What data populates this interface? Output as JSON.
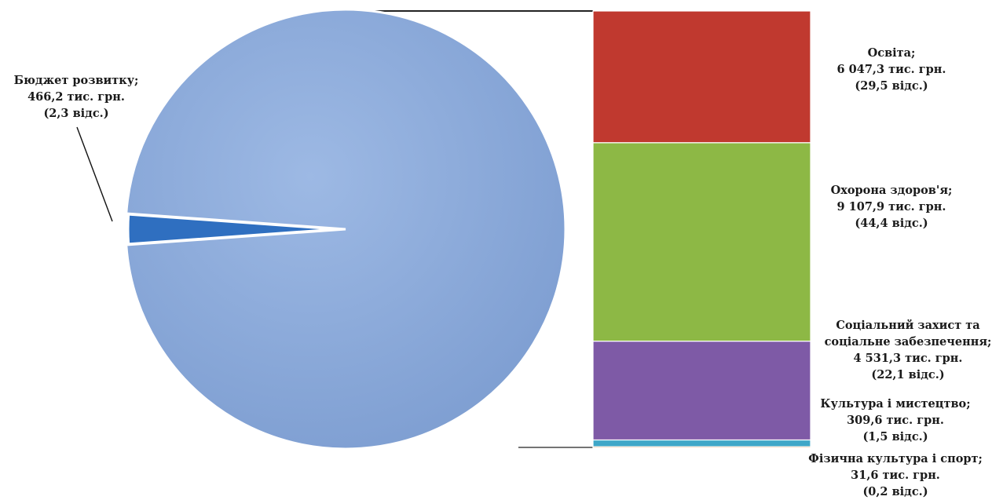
{
  "chart_data": {
    "type": "pie",
    "pie": {
      "slices": [
        {
          "label": "Бюджет розвитку;",
          "value_text": "466,2 тис. грн.",
          "percent_text": "(2,3 відс.)",
          "value": 466.2,
          "percent": 2.3,
          "color": "#2f6fc0"
        },
        {
          "label": "",
          "value": 20028.0,
          "percent": 97.7,
          "color": "#8fb0df"
        }
      ]
    },
    "breakdown": {
      "type": "stacked-bar",
      "segments": [
        {
          "label": "Освіта;",
          "value_text": "6 047,3 тис. грн.",
          "percent_text": "(29,5 відс.)",
          "value": 6047.3,
          "percent": 29.5,
          "color": "#c0392f"
        },
        {
          "label": "Охорона здоров'я;",
          "value_text": "9 107,9 тис. грн.",
          "percent_text": "(44,4 відс.)",
          "value": 9107.9,
          "percent": 44.4,
          "color": "#8db845"
        },
        {
          "label": "Соціальний захист та соціальне забезпечення;",
          "value_text": "4 531,3 тис. грн.",
          "percent_text": "(22,1 відс.)",
          "value": 4531.3,
          "percent": 22.1,
          "color": "#7e5aa6"
        },
        {
          "label": "Культура і мистецтво;",
          "value_text": "309,6 тис. грн.",
          "percent_text": "(1,5 відс.)",
          "value": 309.6,
          "percent": 1.5,
          "color": "#3fa7c8"
        },
        {
          "label": "Фізична культура і спорт;",
          "value_text": "31,6 тис. грн.",
          "percent_text": "(0,2 відс.)",
          "value": 31.6,
          "percent": 0.2,
          "color": "#f0913c"
        }
      ]
    }
  }
}
